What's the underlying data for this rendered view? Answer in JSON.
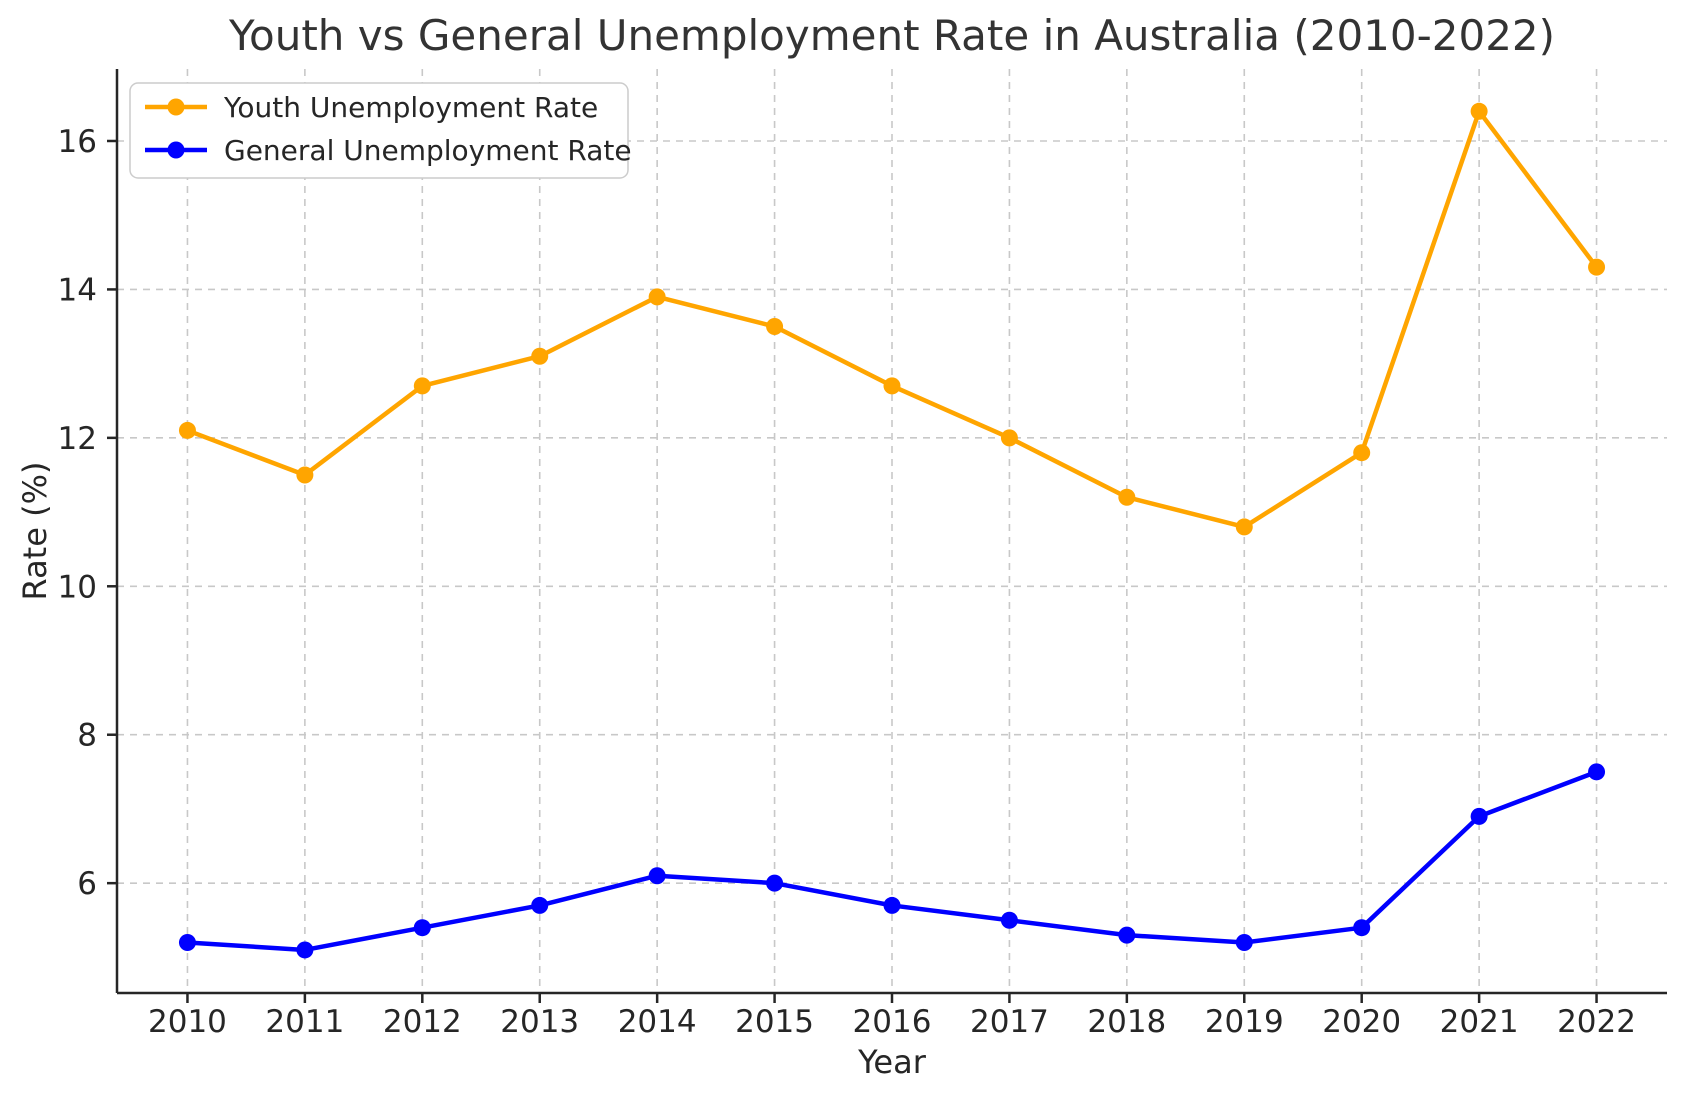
{
  "chart_data": {
    "type": "line",
    "title": "Youth vs General Unemployment Rate in Australia (2010-2022)",
    "xlabel": "Year",
    "ylabel": "Rate (%)",
    "x": [
      2010,
      2011,
      2012,
      2013,
      2014,
      2015,
      2016,
      2017,
      2018,
      2019,
      2020,
      2021,
      2022
    ],
    "series": [
      {
        "name": "Youth Unemployment Rate",
        "slug": "youth",
        "color": "#FFA500",
        "marker": "circle",
        "values": [
          12.1,
          11.5,
          12.7,
          13.1,
          13.9,
          13.5,
          12.7,
          12.0,
          11.2,
          10.8,
          11.8,
          16.4,
          14.3
        ]
      },
      {
        "name": "General Unemployment Rate",
        "slug": "general",
        "color": "#0000FF",
        "marker": "circle",
        "values": [
          5.2,
          5.1,
          5.4,
          5.7,
          6.1,
          6.0,
          5.7,
          5.5,
          5.3,
          5.2,
          5.4,
          6.9,
          7.5
        ]
      }
    ],
    "yticks": [
      6,
      8,
      10,
      12,
      14,
      16
    ],
    "xlim": [
      2009.4,
      2022.6
    ],
    "ylim": [
      4.52,
      16.97
    ],
    "grid": true,
    "grid_style": "dashed",
    "legend_position": "upper-left"
  },
  "colors": {
    "background": "#ffffff",
    "grid": "#c8c8c8",
    "axis": "#262626",
    "tick_text": "#262626",
    "title_text": "#333333",
    "legend_border": "#cccccc",
    "legend_bg": "#ffffff"
  }
}
